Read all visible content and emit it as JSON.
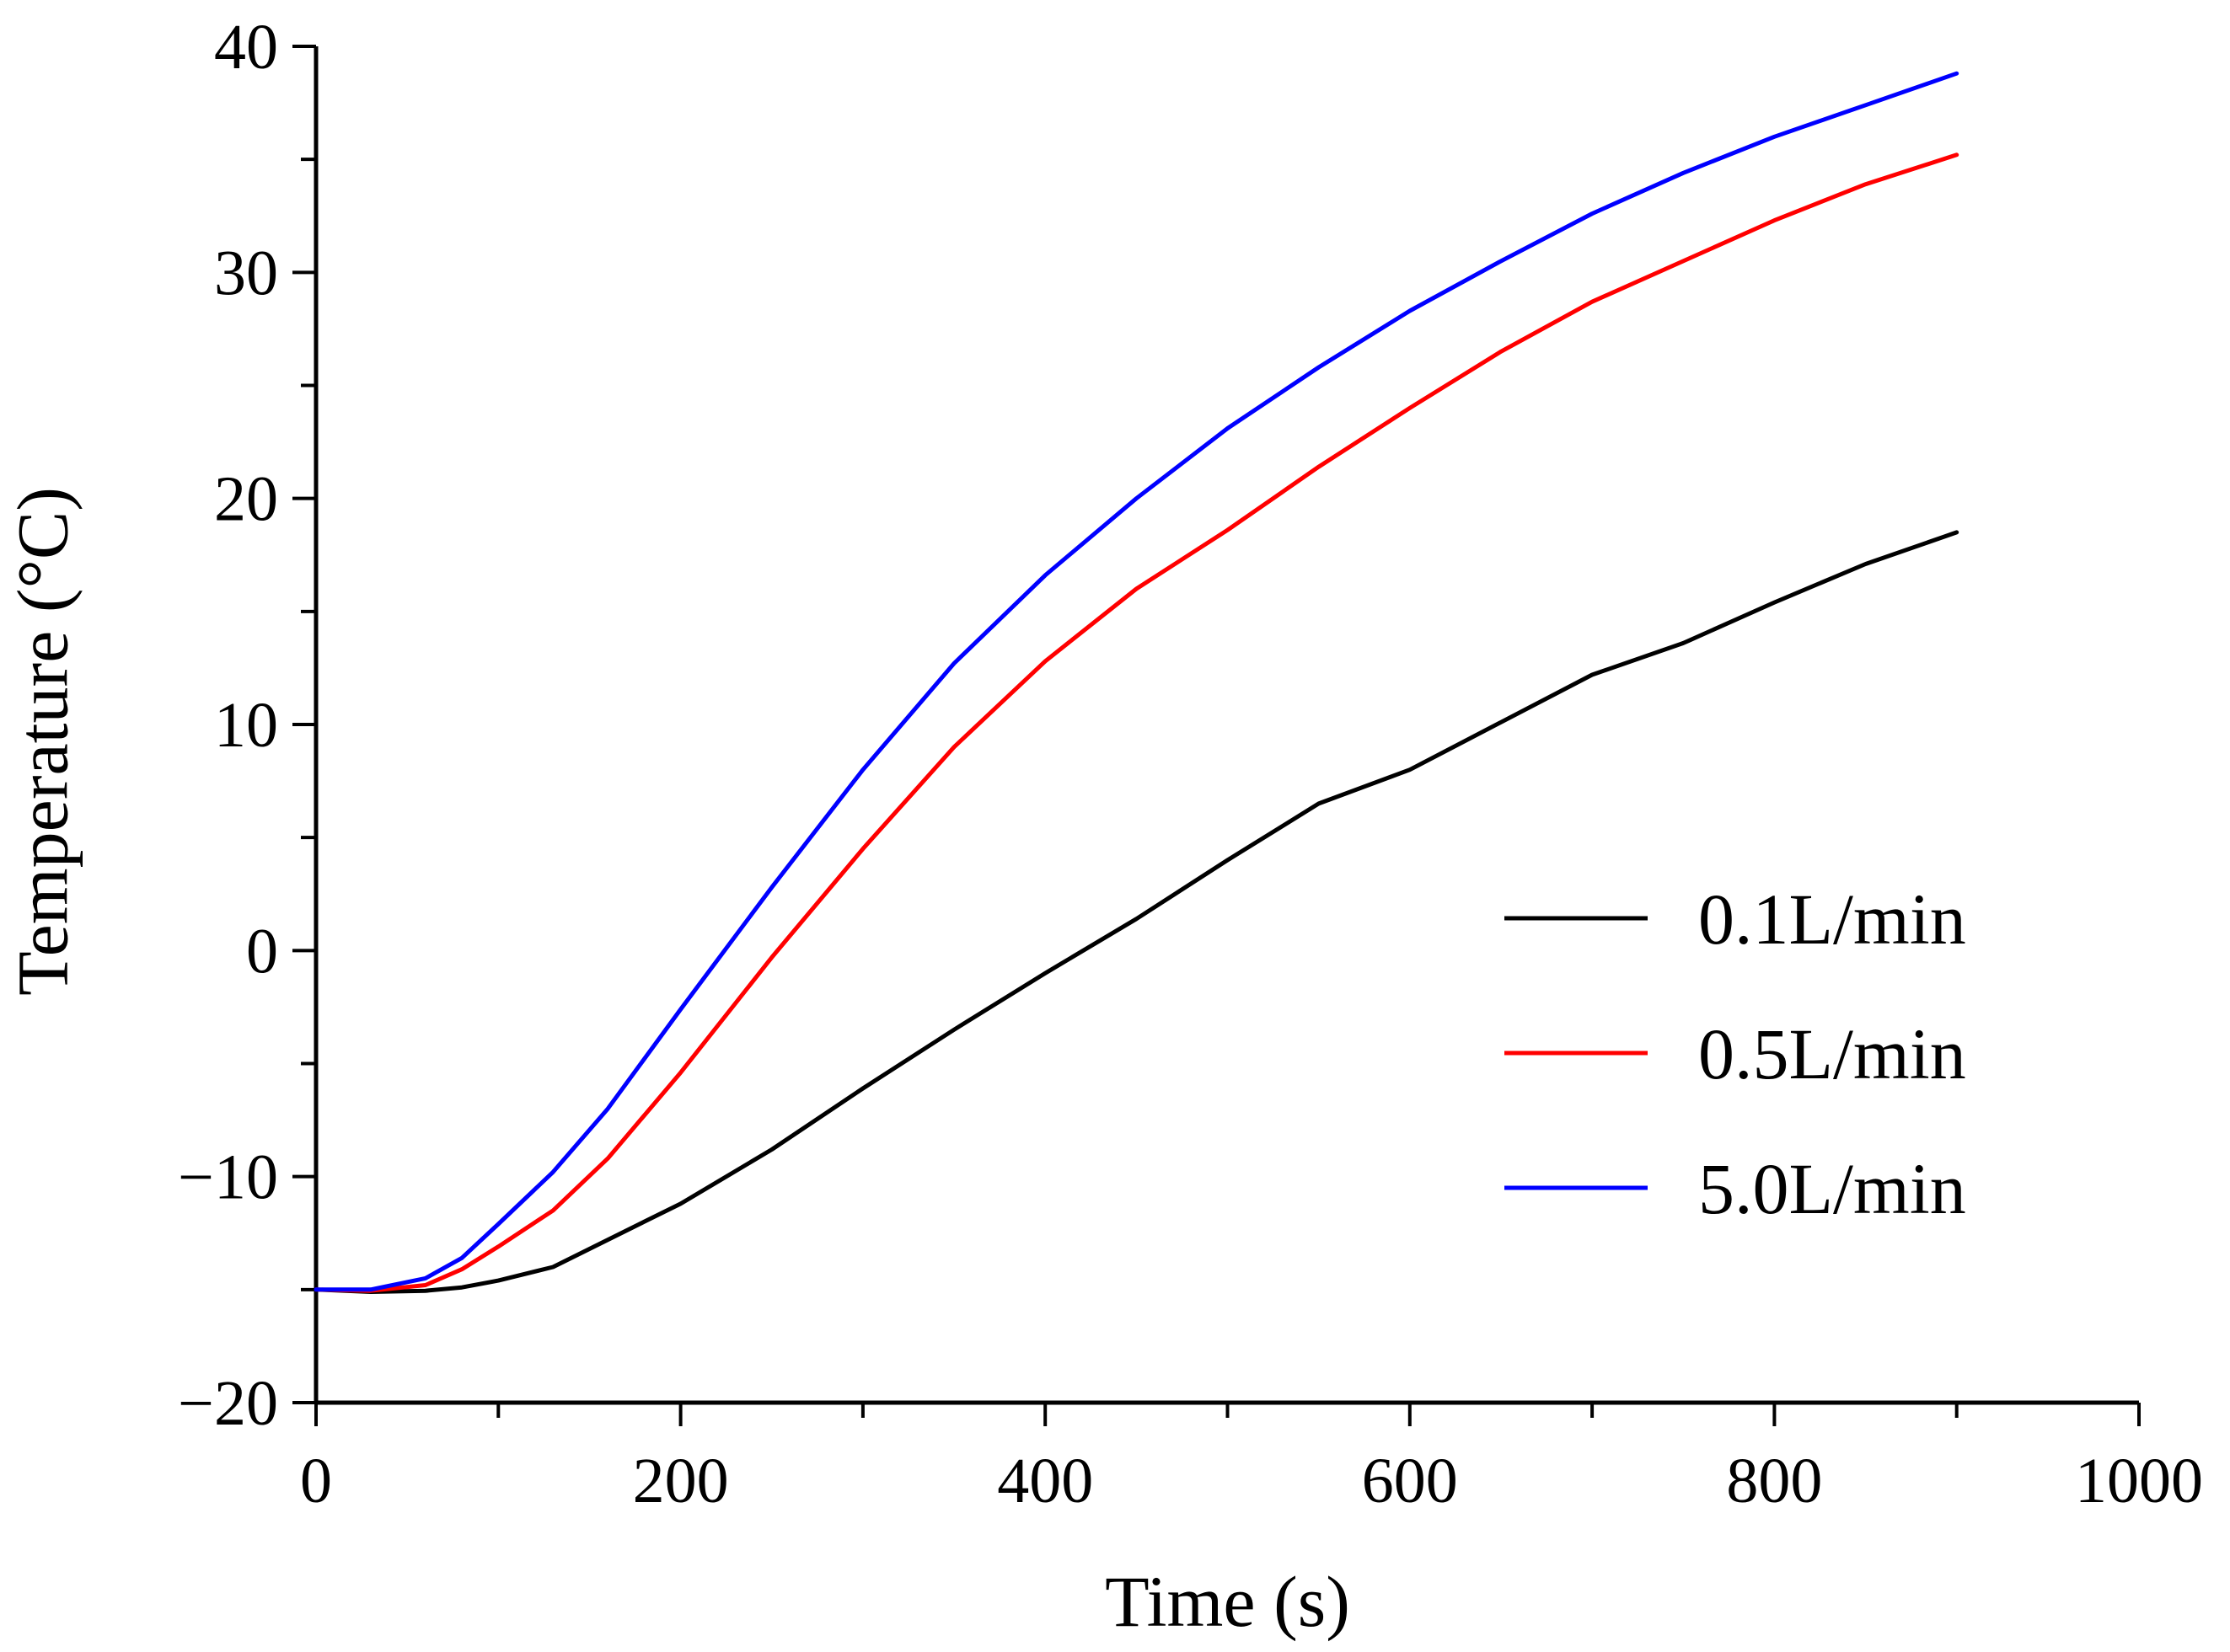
{
  "chart_data": {
    "type": "line",
    "title": "",
    "xlabel": "Time (s)",
    "ylabel": "Temperature (°C)",
    "xlim": [
      0,
      1000
    ],
    "ylim": [
      -20,
      40
    ],
    "xticks": [
      0,
      200,
      400,
      600,
      800,
      1000
    ],
    "yticks": [
      -20,
      -10,
      0,
      10,
      20,
      30,
      40
    ],
    "xtick_labels": [
      "0",
      "200",
      "400",
      "600",
      "800",
      "1000"
    ],
    "ytick_labels": [
      "−20",
      "−10",
      "0",
      "10",
      "20",
      "30",
      "40"
    ],
    "grid": false,
    "legend_position": "center-right",
    "series": [
      {
        "name": "0.1L/min",
        "color": "#000000",
        "x": [
          0,
          30,
          60,
          80,
          100,
          130,
          160,
          180,
          200,
          250,
          300,
          350,
          400,
          450,
          500,
          550,
          600,
          650,
          700,
          750,
          800,
          850,
          900
        ],
        "y": [
          -15,
          -15.1,
          -15.05,
          -14.9,
          -14.6,
          -14.0,
          -12.8,
          -12.0,
          -11.2,
          -8.8,
          -6.1,
          -3.5,
          -1.0,
          1.4,
          4.0,
          6.5,
          8.0,
          10.1,
          12.2,
          13.6,
          15.4,
          17.1,
          18.5
        ]
      },
      {
        "name": "0.5L/min",
        "color": "#ff0000",
        "x": [
          0,
          30,
          60,
          80,
          100,
          130,
          160,
          200,
          250,
          300,
          350,
          400,
          450,
          500,
          550,
          600,
          650,
          700,
          750,
          800,
          850,
          900
        ],
        "y": [
          -15,
          -15.05,
          -14.8,
          -14.1,
          -13.1,
          -11.5,
          -9.2,
          -5.4,
          -0.3,
          4.5,
          9.0,
          12.8,
          16.0,
          18.6,
          21.4,
          24.0,
          26.5,
          28.7,
          30.5,
          32.3,
          33.9,
          35.2
        ]
      },
      {
        "name": "5.0L/min",
        "color": "#0000ff",
        "x": [
          0,
          30,
          60,
          80,
          100,
          130,
          160,
          200,
          250,
          300,
          350,
          400,
          450,
          500,
          550,
          600,
          650,
          700,
          750,
          800,
          850,
          900
        ],
        "y": [
          -15,
          -15.0,
          -14.5,
          -13.6,
          -12.1,
          -9.8,
          -7.0,
          -2.6,
          2.8,
          8.0,
          12.7,
          16.6,
          20.0,
          23.1,
          25.8,
          28.3,
          30.5,
          32.6,
          34.4,
          36.0,
          37.4,
          38.8
        ]
      }
    ]
  }
}
